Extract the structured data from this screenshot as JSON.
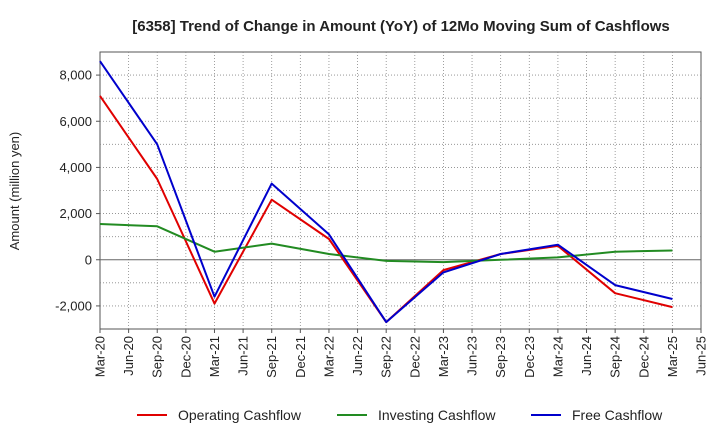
{
  "chart_data": {
    "type": "line",
    "title": "[6358]  Trend of Change in Amount (YoY) of 12Mo Moving Sum of Cashflows",
    "xlabel": "",
    "ylabel": "Amount (million yen)",
    "ylim": [
      -3000,
      9000
    ],
    "yticks": [
      -2000,
      0,
      2000,
      4000,
      6000,
      8000
    ],
    "ytick_labels": [
      "-2,000",
      "0",
      "2,000",
      "4,000",
      "6,000",
      "8,000"
    ],
    "grid": true,
    "legend_position": "bottom",
    "categories": [
      "Mar-20",
      "Jun-20",
      "Sep-20",
      "Dec-20",
      "Mar-21",
      "Jun-21",
      "Sep-21",
      "Dec-21",
      "Mar-22",
      "Jun-22",
      "Sep-22",
      "Dec-22",
      "Mar-23",
      "Jun-23",
      "Sep-23",
      "Dec-23",
      "Mar-24",
      "Jun-24",
      "Sep-24",
      "Dec-24",
      "Mar-25",
      "Jun-25"
    ],
    "series": [
      {
        "name": "Operating Cashflow",
        "color": "#e00000",
        "values": [
          7100,
          null,
          3500,
          null,
          -1900,
          null,
          2600,
          null,
          900,
          null,
          -2700,
          null,
          -450,
          null,
          250,
          null,
          600,
          null,
          -1450,
          null,
          -2050,
          null
        ]
      },
      {
        "name": "Investing Cashflow",
        "color": "#228b22",
        "values": [
          1550,
          null,
          1450,
          null,
          350,
          null,
          700,
          null,
          250,
          null,
          -50,
          null,
          -100,
          null,
          0,
          null,
          100,
          null,
          350,
          null,
          400,
          null
        ]
      },
      {
        "name": "Free Cashflow",
        "color": "#0000cc",
        "values": [
          8600,
          null,
          5000,
          null,
          -1600,
          null,
          3300,
          null,
          1100,
          null,
          -2700,
          null,
          -550,
          null,
          250,
          null,
          650,
          null,
          -1100,
          null,
          -1700,
          null
        ]
      }
    ]
  }
}
